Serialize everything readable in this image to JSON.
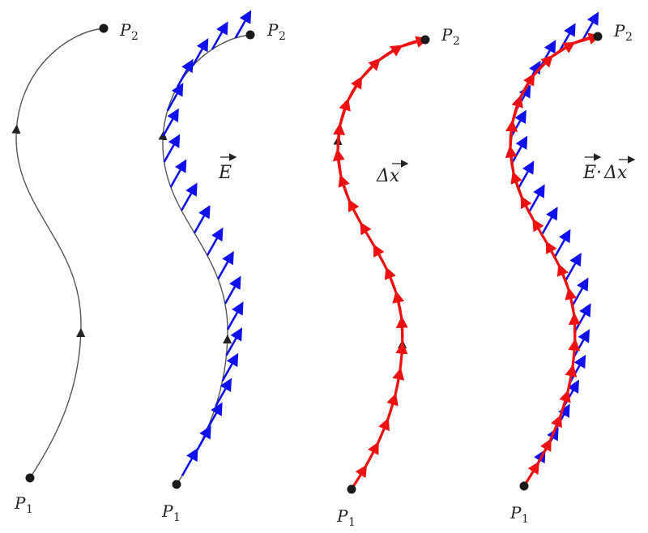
{
  "labels": {
    "p1": "P",
    "p1_sub": "1",
    "p2": "P",
    "p2_sub": "2",
    "field": "E",
    "displacement": "Δx",
    "dot_product_e": "E",
    "dot_product_dot": "·",
    "dot_product_dx": "Δx"
  },
  "colors": {
    "path": "#555555",
    "field_arrows": "#1010ee",
    "displacement_arrows": "#ee1111",
    "points": "#1a1a1a"
  },
  "panels": [
    {
      "name": "path",
      "shows_field": false,
      "shows_displacement": false
    },
    {
      "name": "field-along-path",
      "shows_field": true,
      "shows_displacement": false
    },
    {
      "name": "displacement-along-path",
      "shows_field": false,
      "shows_displacement": true
    },
    {
      "name": "field-dot-displacement",
      "shows_field": true,
      "shows_displacement": true
    }
  ]
}
